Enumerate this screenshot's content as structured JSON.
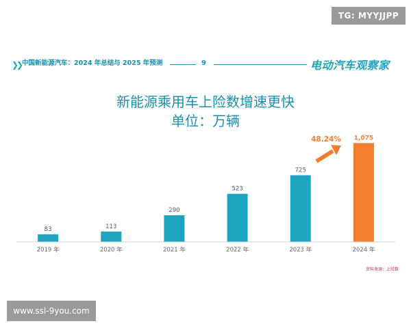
{
  "badge": {
    "text": "TG: MYYJJPP"
  },
  "header": {
    "title": "中国新能源汽车：2024 年总结与 2025 年预测",
    "page_number": "9",
    "brand": "电动汽车观察家"
  },
  "watermark": {
    "text": "www.ssl-9you.com"
  },
  "colors": {
    "accent": "#1da4bf",
    "highlight": "#f07e2e",
    "header": "#1b8fb0"
  },
  "icons": {
    "header_marker": "double-chevron-right-icon",
    "growth_arrow": "arrow-up-right-icon"
  },
  "chart_data": {
    "type": "bar",
    "title": "新能源乘用车上险数增速更快",
    "subtitle": "单位：万辆",
    "categories": [
      "2019 年",
      "2020 年",
      "2021 年",
      "2022 年",
      "2023 年",
      "2024 年"
    ],
    "values": [
      83,
      113,
      290,
      523,
      725,
      1075
    ],
    "value_labels": [
      "83",
      "113",
      "290",
      "523",
      "725",
      "1,075"
    ],
    "highlight_index": 5,
    "annotation": {
      "text": "48.24%",
      "meaning": "growth from 2023 to 2024"
    },
    "ylim": [
      0,
      1100
    ],
    "grid": false,
    "legend": false,
    "source": "资料来源：上险数"
  }
}
